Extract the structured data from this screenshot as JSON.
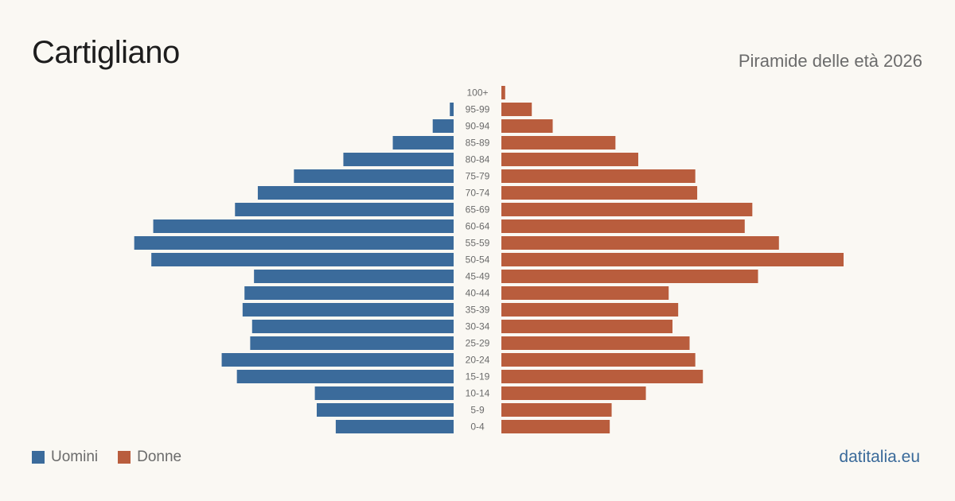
{
  "header": {
    "title": "Cartigliano",
    "subtitle": "Piramide delle età 2026"
  },
  "legend": {
    "men_label": "Uomini",
    "women_label": "Donne"
  },
  "footer": {
    "brand": "datitalia.eu"
  },
  "colors": {
    "men": "#3b6b9b",
    "women": "#b95d3d",
    "background": "#faf8f3"
  },
  "chart_data": {
    "type": "bar",
    "orientation": "horizontal-pyramid",
    "categories": [
      "100+",
      "95-99",
      "90-94",
      "85-89",
      "80-84",
      "75-79",
      "70-74",
      "65-69",
      "60-64",
      "55-59",
      "50-54",
      "45-49",
      "40-44",
      "35-39",
      "30-34",
      "25-29",
      "20-24",
      "15-19",
      "10-14",
      "5-9",
      "0-4"
    ],
    "series": [
      {
        "name": "Uomini",
        "values": [
          0,
          2,
          11,
          32,
          58,
          84,
          103,
          115,
          158,
          168,
          159,
          105,
          110,
          111,
          106,
          107,
          122,
          114,
          73,
          72,
          62
        ]
      },
      {
        "name": "Donne",
        "values": [
          2,
          16,
          27,
          60,
          72,
          102,
          103,
          132,
          128,
          146,
          180,
          135,
          88,
          93,
          90,
          99,
          102,
          106,
          76,
          58,
          57
        ]
      }
    ],
    "xlim": [
      0,
      180
    ],
    "grid": false,
    "legend_position": "bottom-left"
  }
}
